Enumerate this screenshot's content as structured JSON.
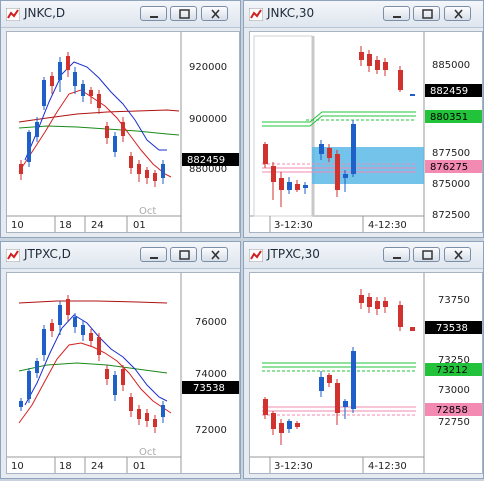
{
  "windows": [
    {
      "id": "w1",
      "title": "JNKC,D",
      "y_ticks": [
        "920000",
        "900000",
        "880000"
      ],
      "x_ticks": [
        "10",
        "18",
        "24",
        "01"
      ],
      "overlay_text": "Oct",
      "price_badge": {
        "label": "882459",
        "color": "#000000"
      },
      "badges": []
    },
    {
      "id": "w2",
      "title": "JNKC,30",
      "y_ticks": [
        "885000",
        "877500",
        "875000",
        "872500"
      ],
      "x_ticks": [
        "3-12:30",
        "4-12:30"
      ],
      "overlay_text": "",
      "price_badge": {
        "label": "882459",
        "color": "#000000"
      },
      "badges": [
        {
          "label": "880351",
          "color": "#22c33a"
        },
        {
          "label": "876275",
          "color": "#f28ab2"
        }
      ]
    },
    {
      "id": "w3",
      "title": "JTPXC,D",
      "y_ticks": [
        "76000",
        "74000",
        "72000"
      ],
      "x_ticks": [
        "10",
        "18",
        "24",
        "01"
      ],
      "overlay_text": "Oct",
      "price_badge": {
        "label": "73538",
        "color": "#000000"
      },
      "badges": []
    },
    {
      "id": "w4",
      "title": "JTPXC,30",
      "y_ticks": [
        "73750",
        "73250",
        "73000",
        "72750"
      ],
      "x_ticks": [
        "3-12:30",
        "4-12:30"
      ],
      "overlay_text": "",
      "price_badge": {
        "label": "73538",
        "color": "#000000"
      },
      "badges": [
        {
          "label": "73212",
          "color": "#22c33a"
        },
        {
          "label": "72858",
          "color": "#f28ab2"
        }
      ]
    }
  ],
  "colors": {
    "up_candle": "#1e5fc8",
    "down_candle": "#d2322d",
    "ma_blue": "#1a2fd0",
    "ma_red": "#d42020",
    "ma_green": "#1a8a1a",
    "ma_darkred": "#b01010",
    "highlight_box": "#5ab8e6"
  },
  "icons": {
    "window": "chart-window-icon",
    "minimize": "minimize-icon",
    "restore": "restore-icon",
    "close": "close-icon"
  }
}
